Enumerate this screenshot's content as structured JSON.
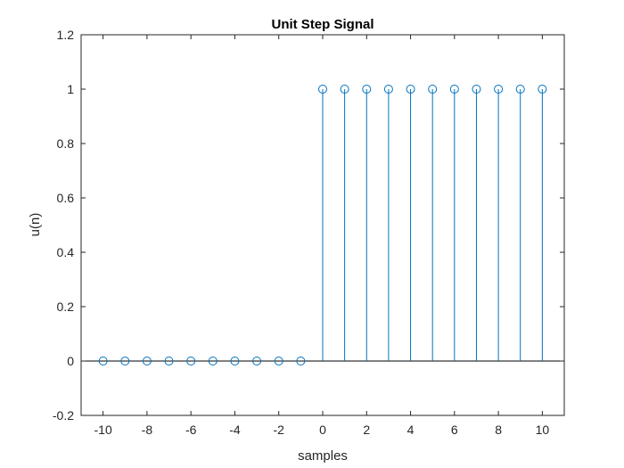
{
  "chart_data": {
    "type": "stem",
    "title": "Unit Step Signal",
    "xlabel": "samples",
    "ylabel": "u(n)",
    "xlim": [
      -11,
      11
    ],
    "ylim": [
      -0.2,
      1.2
    ],
    "xticks": [
      -10,
      -8,
      -6,
      -4,
      -2,
      0,
      2,
      4,
      6,
      8,
      10
    ],
    "xtick_labels": [
      "-10",
      "-8",
      "-6",
      "-4",
      "-2",
      "0",
      "2",
      "4",
      "6",
      "8",
      "10"
    ],
    "yticks": [
      -0.2,
      0,
      0.2,
      0.4,
      0.6,
      0.8,
      1,
      1.2
    ],
    "ytick_labels": [
      "-0.2",
      "0",
      "0.2",
      "0.4",
      "0.6",
      "0.8",
      "1",
      "1.2"
    ],
    "grid": false,
    "baseline": 0,
    "series": [
      {
        "x": [
          -10,
          -9,
          -8,
          -7,
          -6,
          -5,
          -4,
          -3,
          -2,
          -1,
          0,
          1,
          2,
          3,
          4,
          5,
          6,
          7,
          8,
          9,
          10
        ],
        "y": [
          0,
          0,
          0,
          0,
          0,
          0,
          0,
          0,
          0,
          0,
          1,
          1,
          1,
          1,
          1,
          1,
          1,
          1,
          1,
          1,
          1
        ],
        "color": "#0072BD",
        "marker": "circle"
      }
    ]
  }
}
